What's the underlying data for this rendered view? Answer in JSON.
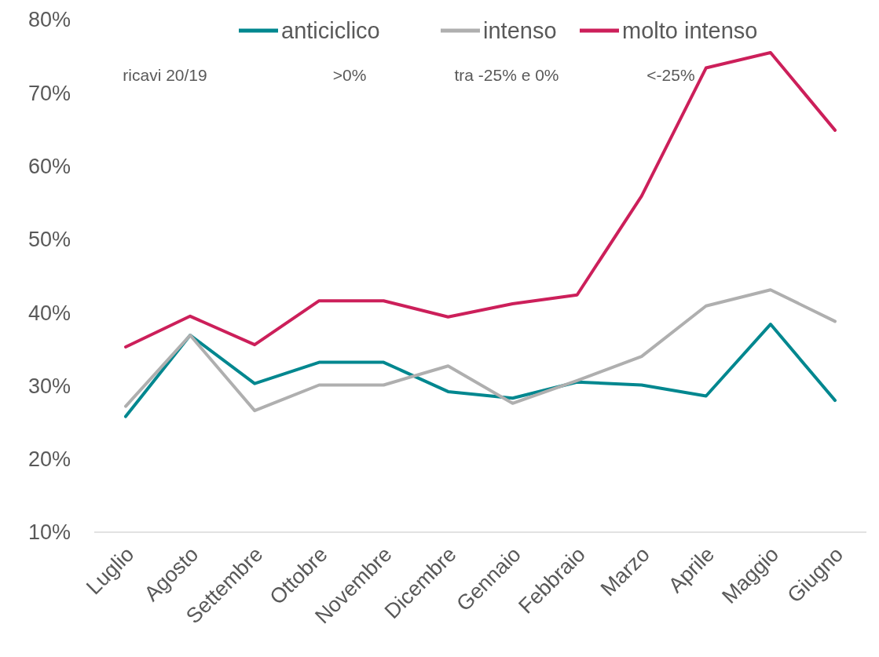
{
  "chart_data": {
    "type": "line",
    "categories": [
      "Luglio",
      "Agosto",
      "Settembre",
      "Ottobre",
      "Novembre",
      "Dicembre",
      "Gennaio",
      "Febbraio",
      "Marzo",
      "Aprile",
      "Maggio",
      "Giugno"
    ],
    "series": [
      {
        "name": "anticiclico",
        "color": "#00878f",
        "values": [
          25.8,
          36.9,
          30.3,
          33.2,
          33.2,
          29.2,
          28.3,
          30.5,
          30.1,
          28.6,
          38.4,
          28.0
        ]
      },
      {
        "name": "intenso",
        "color": "#afafaf",
        "values": [
          27.2,
          36.9,
          26.6,
          30.1,
          30.1,
          32.7,
          27.6,
          30.7,
          34.0,
          40.9,
          43.1,
          38.8
        ]
      },
      {
        "name": "molto intenso",
        "color": "#cc1f5a",
        "values": [
          35.3,
          39.5,
          35.6,
          41.6,
          41.6,
          39.4,
          41.2,
          42.4,
          55.9,
          73.4,
          75.5,
          64.9
        ]
      }
    ],
    "ylim": [
      10,
      80
    ],
    "yticks": [
      {
        "value": 10,
        "label": "10%"
      },
      {
        "value": 20,
        "label": "20%"
      },
      {
        "value": 30,
        "label": "30%"
      },
      {
        "value": 40,
        "label": "40%"
      },
      {
        "value": 50,
        "label": "50%"
      },
      {
        "value": 60,
        "label": "60%"
      },
      {
        "value": 70,
        "label": "70%"
      },
      {
        "value": 80,
        "label": "80%"
      }
    ],
    "annotations": [
      "ricavi 20/19",
      ">0%",
      "tra -25% e 0%",
      "<-25%"
    ],
    "legend": "top",
    "grid": false,
    "marker": "none",
    "line_style": "solid"
  }
}
